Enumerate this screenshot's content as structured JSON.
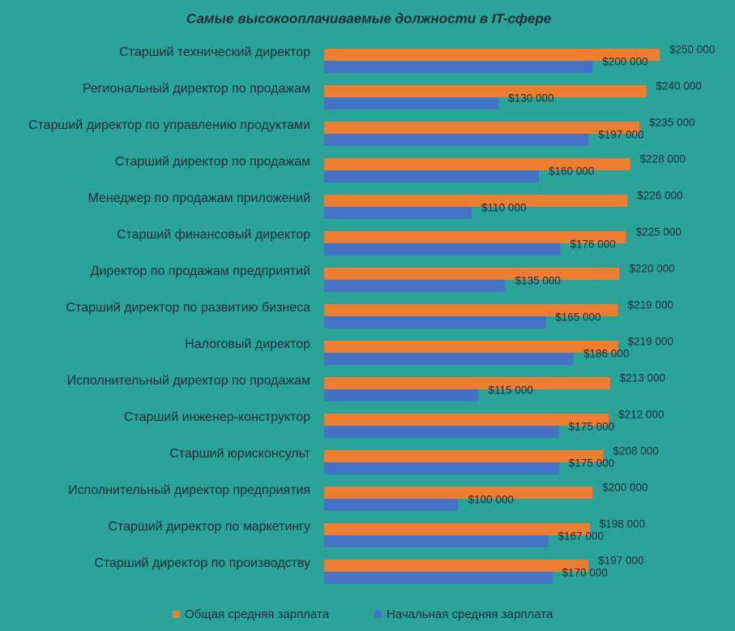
{
  "chart_data": {
    "type": "bar",
    "orientation": "horizontal",
    "title": "Самые высокооплачиваемые  должности в IT-сфере",
    "categories": [
      "Старший технический директор",
      "Региональный директор по продажам",
      "Старший директор по управлению продуктами",
      "Старший директор по продажам",
      "Менеджер по продажам приложений",
      "Старший финансовый директор",
      "Директор по продажам предприятий",
      "Старший директор по развитию бизнеса",
      "Налоговый директор",
      "Исполнительный директор по продажам",
      "Старший инженер-конструктор",
      "Старший юрисконсульт",
      "Исполнительный директор предприятия",
      "Старший директор по маркетингу",
      "Старший директор по производству"
    ],
    "series": [
      {
        "name": "Общая средняя зарплата",
        "color": "#ed7d31",
        "values": [
          250000,
          240000,
          235000,
          228000,
          226000,
          225000,
          220000,
          219000,
          219000,
          213000,
          212000,
          208000,
          200000,
          198000,
          197000
        ],
        "value_labels": [
          "$250 000",
          "$240 000",
          "$235 000",
          "$228 000",
          "$226 000",
          "$225 000",
          "$220 000",
          "$219 000",
          "$219 000",
          "$213 000",
          "$212 000",
          "$208 000",
          "$200 000",
          "$198 000",
          "$197 000"
        ]
      },
      {
        "name": "Начальная средняя зарплата",
        "color": "#4472c4",
        "values": [
          200000,
          130000,
          197000,
          160000,
          110000,
          176000,
          135000,
          165000,
          186000,
          115000,
          175000,
          175000,
          100000,
          167000,
          170000
        ],
        "value_labels": [
          "$200 000",
          "$130 000",
          "$197 000",
          "$160 000",
          "$110 000",
          "$176 000",
          "$135 000",
          "$165 000",
          "$186 000",
          "$115 000",
          "$175 000",
          "$175 000",
          "$100 000",
          "$167 000",
          "$170 000"
        ]
      }
    ],
    "xlim": [
      0,
      250000
    ],
    "legend": "bottom"
  }
}
